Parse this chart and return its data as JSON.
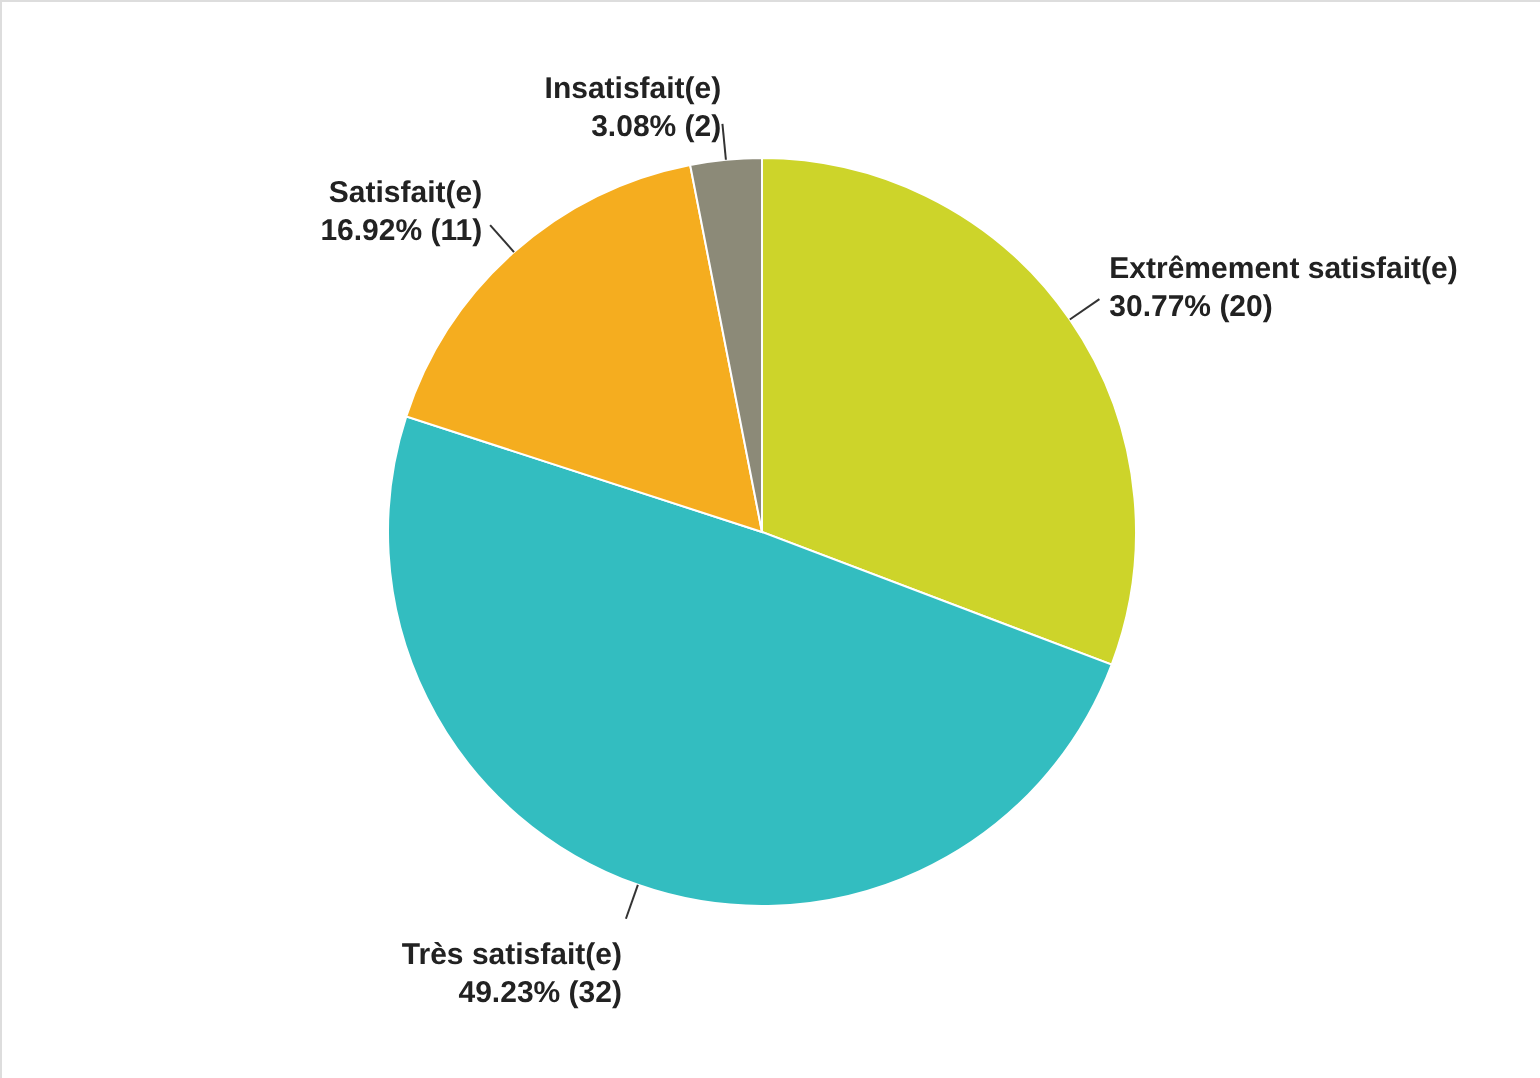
{
  "chart_data": {
    "type": "pie",
    "categories": [
      "Extrêmement satisfait(e)",
      "Très satisfait(e)",
      "Satisfait(e)",
      "Insatisfait(e)"
    ],
    "values": [
      20,
      32,
      11,
      2
    ],
    "value_labels": [
      "30.77% (20)",
      "49.23% (32)",
      "16.92% (11)",
      "3.08% (2)"
    ],
    "colors": [
      "#cdd42a",
      "#33bdc0",
      "#f5ad1f",
      "#8c8a78"
    ]
  }
}
